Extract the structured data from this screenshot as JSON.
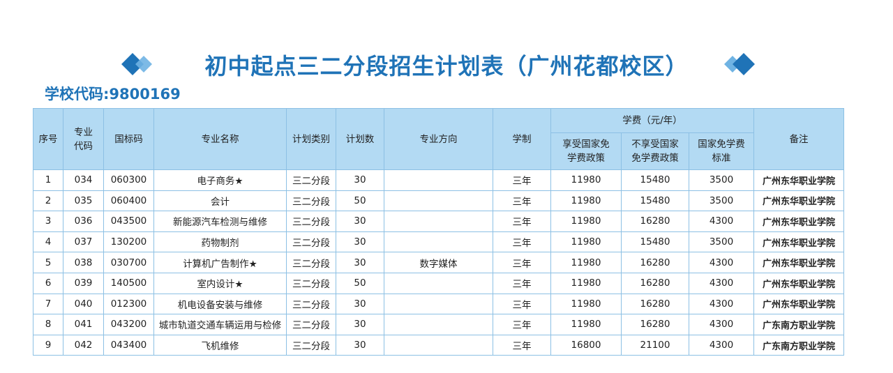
{
  "header": {
    "title": "初中起点三二分段招生计划表（广州花都校区）",
    "school_code": "学校代码:9800169"
  },
  "table": {
    "headers": [
      [
        "序号"
      ],
      [
        "专业",
        "代码"
      ],
      [
        "国标码"
      ],
      [
        "专业名称"
      ],
      [
        "计划类别"
      ],
      [
        "计划数"
      ],
      [
        "专业方向"
      ],
      [
        "学制"
      ],
      null,
      null,
      null,
      [
        "备注"
      ]
    ],
    "fee_group": "学费（元/年）",
    "fee_headers": [
      [
        "享受国家免",
        "学费政策"
      ],
      [
        "不享受国家",
        "免学费政策"
      ],
      [
        "国家免学费",
        "标准"
      ]
    ],
    "rows": [
      [
        "1",
        "034",
        "060300",
        "电子商务★",
        "三二分段",
        "30",
        null,
        "三年",
        "11980",
        "15480",
        "3500",
        "广州东华职业学院"
      ],
      [
        "2",
        "035",
        "060400",
        "会计",
        "三二分段",
        "50",
        null,
        "三年",
        "11980",
        "15480",
        "3500",
        "广州东华职业学院"
      ],
      [
        "3",
        "036",
        "043500",
        "新能源汽车检测与维修",
        "三二分段",
        "30",
        null,
        "三年",
        "11980",
        "16280",
        "4300",
        "广州东华职业学院"
      ],
      [
        "4",
        "037",
        "130200",
        "药物制剂",
        "三二分段",
        "30",
        null,
        "三年",
        "11980",
        "15480",
        "3500",
        "广州东华职业学院"
      ],
      [
        "5",
        "038",
        "030700",
        "计算机广告制作★",
        "三二分段",
        "30",
        "数字媒体",
        "三年",
        "11980",
        "16280",
        "4300",
        "广州东华职业学院"
      ],
      [
        "6",
        "039",
        "140500",
        "室内设计★",
        "三二分段",
        "50",
        null,
        "三年",
        "11980",
        "16280",
        "4300",
        "广州东华职业学院"
      ],
      [
        "7",
        "040",
        "012300",
        "机电设备安装与维修",
        "三二分段",
        "30",
        null,
        "三年",
        "11980",
        "16280",
        "4300",
        "广州东华职业学院"
      ],
      [
        "8",
        "041",
        "043200",
        "城市轨道交通车辆运用与检修",
        "三二分段",
        "30",
        null,
        "三年",
        "11980",
        "16280",
        "4300",
        "广东南方职业学院"
      ],
      [
        "9",
        "042",
        "043400",
        "飞机维修",
        "三二分段",
        "30",
        null,
        "三年",
        "16800",
        "21100",
        "4300",
        "广东南方职业学院"
      ]
    ]
  }
}
